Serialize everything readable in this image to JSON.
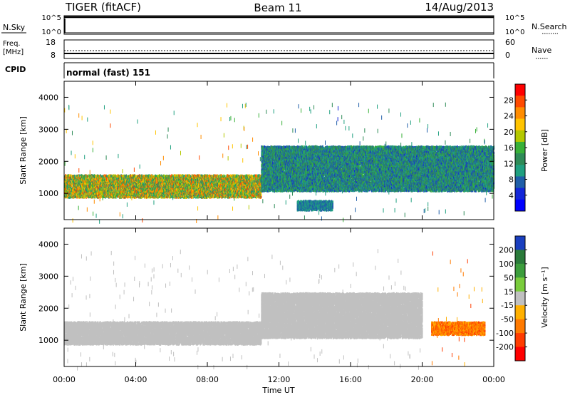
{
  "header": {
    "radar": "TIGER (fitACF)",
    "beam": "Beam 11",
    "date": "14/Aug/2013"
  },
  "nsky_panel": {
    "left_label": "N.Sky",
    "left_ticks": [
      "10^5",
      "10^0"
    ],
    "right_ticks": [
      "10^5",
      "10^0"
    ],
    "right_label": "N.Search"
  },
  "freq_panel": {
    "left_label_1": "Freq.",
    "left_label_2": "[MHz]",
    "left_ticks": [
      "18",
      "8"
    ],
    "right_ticks": [
      "60",
      "0"
    ],
    "right_label": "Nave"
  },
  "cpid_panel": {
    "label": "CPID",
    "value": "normal (fast) 151"
  },
  "power_panel": {
    "ylabel": "Slant Range [km]",
    "cbar_label": "Power [dB]",
    "cbar_ticks": [
      "28",
      "24",
      "20",
      "16",
      "12",
      "8",
      "4"
    ],
    "cbar_colors": [
      "#ff0000",
      "#ff4a00",
      "#ff8c00",
      "#ffc400",
      "#b4c800",
      "#38b038",
      "#2e8b57",
      "#20a080",
      "#1f5ea8",
      "#1226d8",
      "#0000ff"
    ]
  },
  "velocity_panel": {
    "ylabel": "Slant Range [km]",
    "cbar_label": "Velocity [m s⁻¹]",
    "cbar_ticks": [
      "200",
      "100",
      "50",
      "15",
      "-15",
      "-50",
      "-100",
      "-200"
    ],
    "cbar_colors": [
      "#1a3fbf",
      "#2a7a3a",
      "#3c9d3c",
      "#7acc3c",
      "#c0c0c0",
      "#ffb000",
      "#ff7a00",
      "#ff3c00",
      "#ff0000"
    ]
  },
  "xaxis": {
    "label": "Time UT",
    "ticks": [
      "00:00",
      "04:00",
      "08:00",
      "12:00",
      "16:00",
      "20:00",
      "00:00"
    ]
  },
  "chart_data": [
    {
      "type": "heatmap",
      "title": "Power",
      "xlabel": "Time UT",
      "ylabel": "Slant Range [km]",
      "xlim": [
        0,
        24
      ],
      "ylim": [
        180,
        4500
      ],
      "yticks": [
        1000,
        2000,
        3000,
        4000
      ],
      "colorbar": {
        "label": "Power [dB]",
        "range": [
          0,
          32
        ],
        "ticks": [
          4,
          8,
          12,
          16,
          20,
          24,
          28
        ]
      },
      "features": [
        {
          "name": "lower echo band",
          "time_h": [
            0,
            11
          ],
          "range_km": [
            900,
            1600
          ],
          "power_db": [
            8,
            30
          ]
        },
        {
          "name": "upper echo band",
          "time_h": [
            11,
            24
          ],
          "range_km": [
            1100,
            2500
          ],
          "power_db": [
            4,
            16
          ]
        },
        {
          "name": "isolated patch",
          "time_h": [
            13,
            15
          ],
          "range_km": [
            500,
            800
          ],
          "power_db": [
            6,
            10
          ]
        }
      ]
    },
    {
      "type": "heatmap",
      "title": "Velocity",
      "xlabel": "Time UT",
      "ylabel": "Slant Range [km]",
      "xlim": [
        0,
        24
      ],
      "ylim": [
        180,
        4500
      ],
      "yticks": [
        1000,
        2000,
        3000,
        4000
      ],
      "colorbar": {
        "label": "Velocity [m s⁻¹]",
        "range": [
          -250,
          250
        ],
        "ticks": [
          200,
          100,
          50,
          15,
          -15,
          -50,
          -100,
          -200
        ]
      },
      "features": [
        {
          "name": "ground scatter band",
          "time_h": [
            0,
            11
          ],
          "range_km": [
            900,
            1600
          ],
          "velocity": [
            -15,
            15
          ]
        },
        {
          "name": "ground scatter band",
          "time_h": [
            11,
            20
          ],
          "range_km": [
            1100,
            2500
          ],
          "velocity": [
            -15,
            15
          ]
        },
        {
          "name": "negative velocity patch",
          "time_h": [
            20.5,
            23.5
          ],
          "range_km": [
            1200,
            1600
          ],
          "velocity": [
            -200,
            -50
          ]
        }
      ]
    }
  ]
}
